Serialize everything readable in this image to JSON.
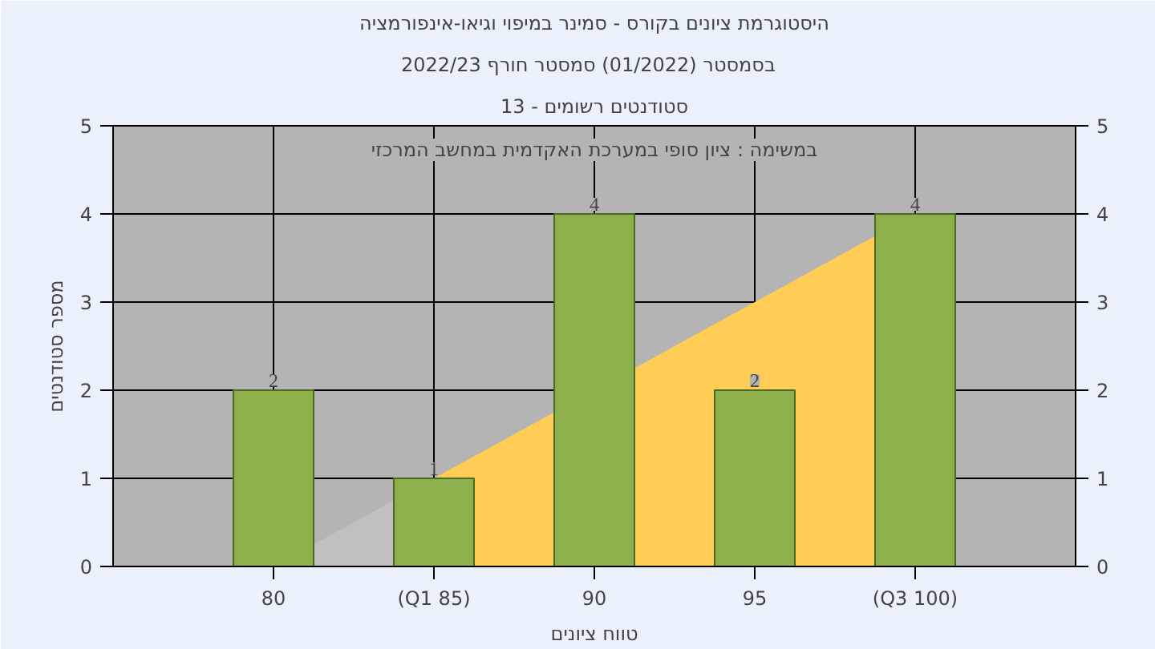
{
  "chart_data": {
    "type": "bar",
    "title": "היסטוגרמת ציונים בקורס - סמינר במיפוי וגיאו-אינפורמציה",
    "subtitle": "בסמסטר  (01/2022)  סמסטר חורף 2022/23",
    "xlabel": "טווח ציונים",
    "ylabel": "מספר סטודנטים",
    "annotations": [
      "סטודנטים רשומים - 13",
      "במשימה : ציון סופי במערכת האקדמית במחשב המרכזי"
    ],
    "categories": [
      "80",
      "(Q1 85)",
      "90",
      "95",
      "(Q3 100)"
    ],
    "series": [
      {
        "type": "area",
        "color": "#c0c0c0",
        "values": [
          0,
          1,
          null,
          null,
          null
        ]
      },
      {
        "type": "area",
        "color": "#ffcc55",
        "values": [
          null,
          1,
          null,
          3,
          4
        ]
      },
      {
        "color": "#8db04c",
        "values": [
          2,
          1,
          4,
          2,
          4
        ],
        "value_labels": [
          "2",
          "1",
          "4",
          "2",
          "4"
        ]
      }
    ],
    "ylim": [
      0,
      5
    ],
    "yticks": [
      0,
      1,
      2,
      3,
      4,
      5
    ],
    "y2lim": [
      0,
      5
    ],
    "y2ticks": [
      0,
      1,
      2,
      3,
      4,
      5
    ],
    "grid": true
  }
}
